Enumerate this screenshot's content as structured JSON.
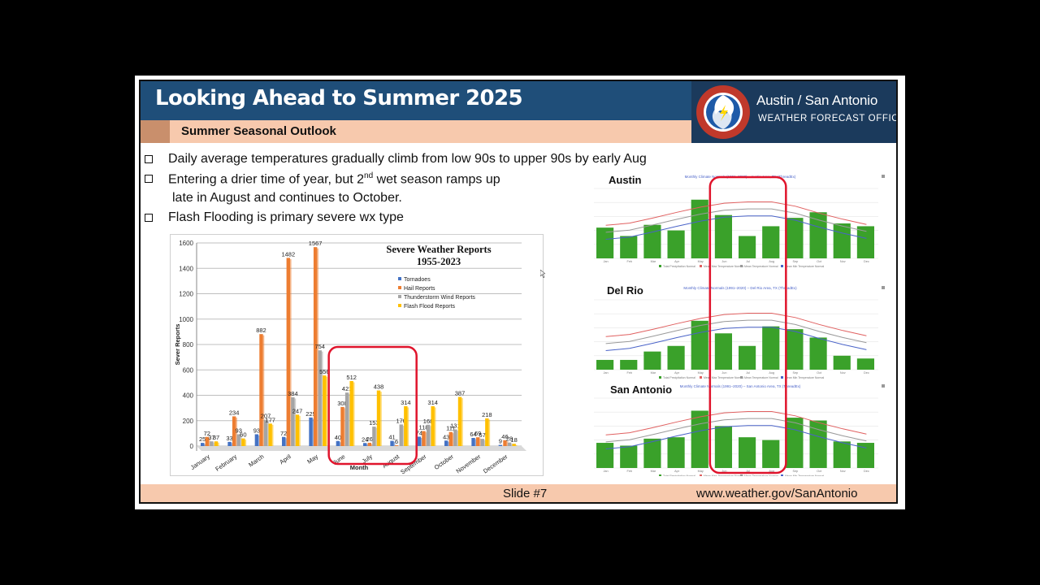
{
  "header": {
    "title": "Looking Ahead to Summer 2025",
    "subtitle": "Summer Seasonal Outlook",
    "office_name": "Austin / San Antonio",
    "office_sub": "WEATHER FORECAST OFFICE",
    "logo_icon": "nws-logo-icon"
  },
  "bullets": [
    {
      "line1": "Daily average temperatures gradually climb from low 90s to upper 90s by early Aug"
    },
    {
      "line1a": "Entering a drier time of year, but 2",
      "sup": "nd",
      "line1b": " wet season ramps up",
      "line2": "late in August and continues to October."
    },
    {
      "line1": "Flash Flooding is primary severe wx type"
    }
  ],
  "chart_data": {
    "type": "bar",
    "title": "Severe Weather Reports",
    "subtitle": "1955-2023",
    "xlabel": "Month",
    "ylabel": "Sever Reports",
    "ylim": [
      0,
      1600
    ],
    "yticks": [
      0,
      200,
      400,
      600,
      800,
      1000,
      1200,
      1400,
      1600
    ],
    "categories": [
      "January",
      "February",
      "March",
      "April",
      "May",
      "June",
      "July",
      "August",
      "September",
      "October",
      "November",
      "December"
    ],
    "series": [
      {
        "name": "Tornadoes",
        "color": "#4472c4",
        "values": [
          25,
          33,
          93,
          72,
          225,
          40,
          24,
          41,
          74,
          43,
          64,
          9
        ]
      },
      {
        "name": "Hail Reports",
        "color": "#ed7d31",
        "values": [
          72,
          234,
          882,
          1482,
          1567,
          308,
          26,
          6,
          118,
          111,
          69,
          46
        ]
      },
      {
        "name": "Thunderstorm Wind Reports",
        "color": "#a5a5a5",
        "values": [
          37,
          93,
          207,
          384,
          754,
          421,
          153,
          170,
          168,
          131,
          57,
          28
        ]
      },
      {
        "name": "Flash Flood Reports",
        "color": "#ffc000",
        "values": [
          37,
          60,
          177,
          247,
          556,
          512,
          438,
          314,
          314,
          387,
          218,
          18
        ]
      }
    ],
    "legend_position": "top-right",
    "highlight_categories": [
      "June",
      "July",
      "August"
    ],
    "highlight_color": "#e0142c"
  },
  "mini_charts": [
    {
      "name": "Austin",
      "caption": "Monthly Climate Normals (1991–2020) – Austin Area, TX (ThreadEx)",
      "precip": [
        2.2,
        1.6,
        2.4,
        2.0,
        4.2,
        3.1,
        1.6,
        2.3,
        2.9,
        3.3,
        2.5,
        2.3
      ]
    },
    {
      "name": "Del Rio",
      "caption": "Monthly Climate Normals (1991–2020) – Del Rio Area, TX (ThreadEx)",
      "precip": [
        0.7,
        0.7,
        1.3,
        1.7,
        3.5,
        2.6,
        1.7,
        3.1,
        2.9,
        2.3,
        1.0,
        0.8
      ]
    },
    {
      "name": "San Antonio",
      "caption": "Monthly Climate Normals (1991–2020) – San Antonio Area, TX (ThreadEx)",
      "precip": [
        1.8,
        1.6,
        2.1,
        2.2,
        4.1,
        3.0,
        2.2,
        2.0,
        3.6,
        3.4,
        1.9,
        1.8
      ]
    }
  ],
  "mini_common": {
    "months": [
      "Jan",
      "Feb",
      "Mar",
      "Apr",
      "May",
      "Jun",
      "Jul",
      "Aug",
      "Sep",
      "Oct",
      "Nov",
      "Dec"
    ],
    "legend": [
      "Total Precipitation Normal",
      "Mean Max Temperature Normal",
      "Mean Temperature Normal",
      "Mean Min Temperature Normal"
    ],
    "bar_color": "#3aa12a",
    "max_line_color": "#e06060",
    "avg_line_color": "#9a9a9a",
    "min_line_color": "#4a63c8",
    "highlight_color": "#e0142c"
  },
  "footer": {
    "slide_number": "Slide #7",
    "url": "www.weather.gov/SanAntonio"
  }
}
